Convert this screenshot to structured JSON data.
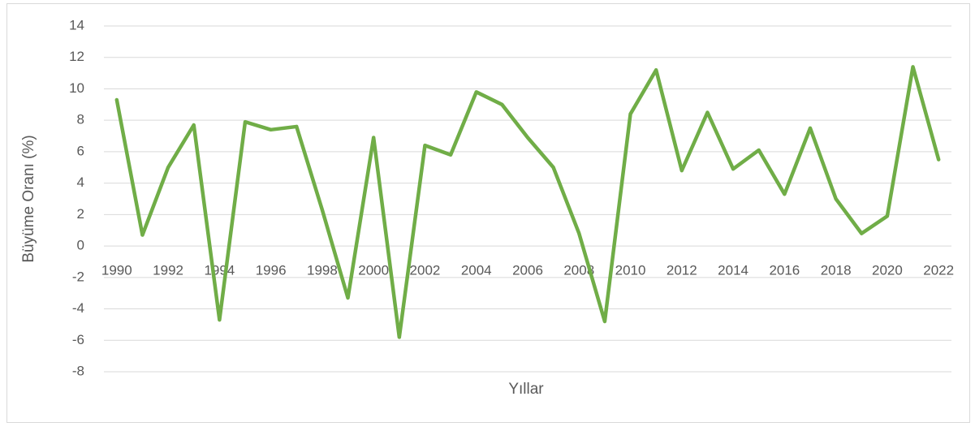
{
  "chart_data": {
    "type": "line",
    "x_label": "Yıllar",
    "y_label": "Büyüme Oranı (%)",
    "categories": [
      "1990",
      null,
      "1992",
      null,
      "1994",
      null,
      "1996",
      null,
      "1998",
      null,
      "2000",
      null,
      "2002",
      null,
      "2004",
      null,
      "2006",
      null,
      "2008",
      null,
      "2010",
      null,
      "2012",
      null,
      "2014",
      null,
      "2016",
      null,
      "2018",
      null,
      "2020",
      null,
      "2022"
    ],
    "values": [
      9.3,
      0.7,
      5.0,
      7.7,
      -4.7,
      7.9,
      7.4,
      7.6,
      2.3,
      -3.3,
      6.9,
      -5.8,
      6.4,
      5.8,
      9.8,
      9.0,
      6.9,
      5.0,
      0.8,
      -4.8,
      8.4,
      11.2,
      4.8,
      8.5,
      4.9,
      6.1,
      3.3,
      7.5,
      3.0,
      0.8,
      1.9,
      11.4,
      5.5
    ],
    "color": "#70ad47",
    "ylim": [
      -8,
      14
    ],
    "yticks": [
      -8,
      -6,
      -4,
      -2,
      0,
      2,
      4,
      6,
      8,
      10,
      12,
      14
    ],
    "grid": true
  }
}
